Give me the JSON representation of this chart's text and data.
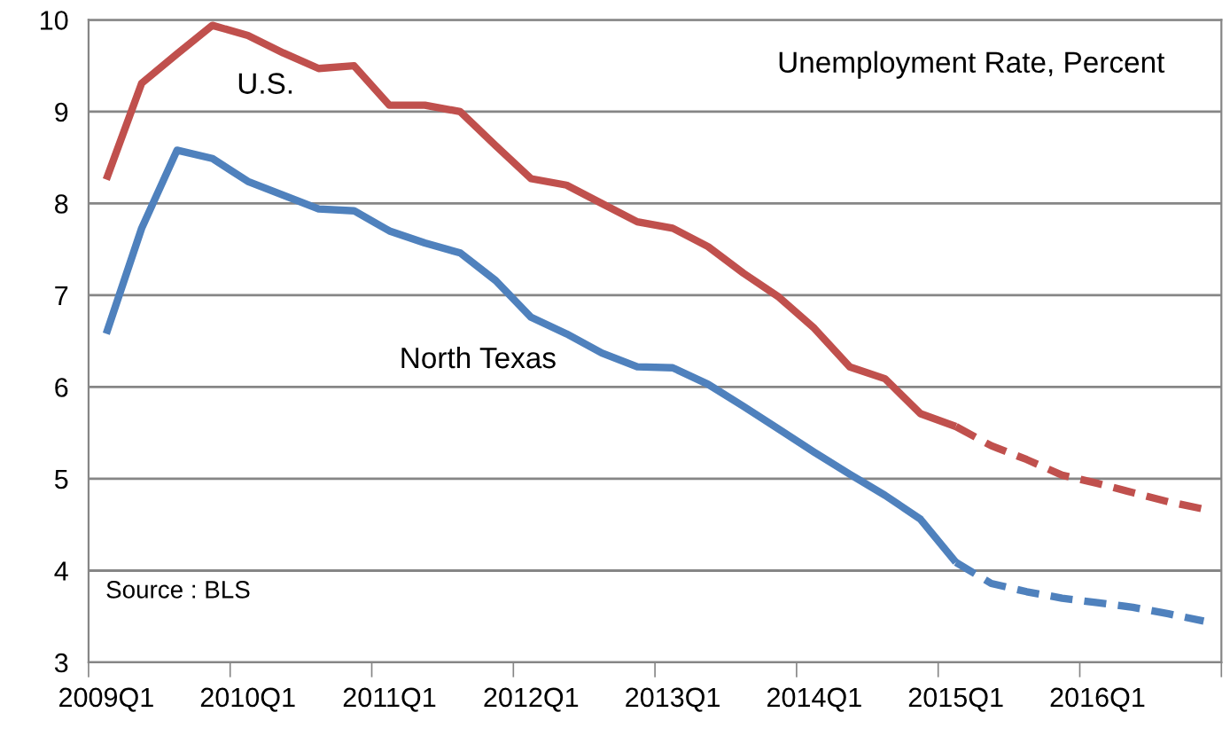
{
  "chart_data": {
    "type": "line",
    "categories": [
      "2009Q1",
      null,
      null,
      null,
      "2010Q1",
      null,
      null,
      null,
      "2011Q1",
      null,
      null,
      null,
      "2012Q1",
      null,
      null,
      null,
      "2013Q1",
      null,
      null,
      null,
      "2014Q1",
      null,
      null,
      null,
      "2015Q1",
      null,
      null,
      null,
      "2016Q1",
      null,
      null,
      null
    ],
    "series": [
      {
        "name": "U.S.",
        "color": "#c0504d",
        "line_style": "solid",
        "values": [
          8.26,
          9.31,
          9.63,
          9.94,
          9.83,
          9.64,
          9.47,
          9.5,
          9.07,
          9.07,
          9.0,
          8.63,
          8.27,
          8.2,
          8.0,
          7.8,
          7.73,
          7.53,
          7.24,
          6.98,
          6.64,
          6.22,
          6.09,
          5.71,
          5.57,
          null,
          null,
          null,
          null,
          null,
          null,
          null
        ]
      },
      {
        "color": "#c0504d",
        "line_style": "dashed",
        "values": [
          null,
          null,
          null,
          null,
          null,
          null,
          null,
          null,
          null,
          null,
          null,
          null,
          null,
          null,
          null,
          null,
          null,
          null,
          null,
          null,
          null,
          null,
          null,
          null,
          5.57,
          5.36,
          5.21,
          5.04,
          4.95,
          4.85,
          4.75,
          4.67
        ]
      },
      {
        "name": "North Texas",
        "color": "#4f81bd",
        "line_style": "solid",
        "values": [
          6.58,
          7.73,
          8.58,
          8.49,
          8.24,
          8.09,
          7.94,
          7.92,
          7.7,
          7.57,
          7.46,
          7.16,
          6.76,
          6.58,
          6.37,
          6.22,
          6.21,
          6.03,
          5.79,
          5.54,
          5.29,
          5.05,
          4.82,
          4.56,
          4.09,
          null,
          null,
          null,
          null,
          null,
          null,
          null
        ]
      },
      {
        "color": "#4f81bd",
        "line_style": "dashed",
        "values": [
          null,
          null,
          null,
          null,
          null,
          null,
          null,
          null,
          null,
          null,
          null,
          null,
          null,
          null,
          null,
          null,
          null,
          null,
          null,
          null,
          null,
          null,
          null,
          null,
          4.09,
          3.86,
          3.77,
          3.7,
          3.65,
          3.6,
          3.53,
          3.45
        ]
      }
    ],
    "ylim": [
      3,
      10
    ],
    "yticks": [
      3,
      4,
      5,
      6,
      7,
      8,
      9,
      10
    ],
    "grid": "y",
    "legend": false,
    "annotations": [
      "Unemployment Rate, Percent",
      "Source : BLS"
    ]
  }
}
